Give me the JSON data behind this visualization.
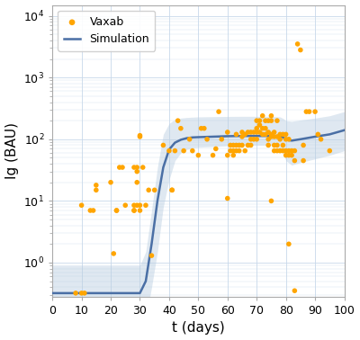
{
  "xlabel": "t (days)",
  "ylabel": "Ig (BAU)",
  "xlim": [
    0,
    100
  ],
  "ylim_log": [
    0.28,
    15000
  ],
  "ytick_locs": [
    1,
    10,
    100,
    1000,
    10000
  ],
  "ytick_labels": [
    "$10^0$",
    "$10^1$",
    "$10^2$",
    "$10^3$",
    "$10^4$"
  ],
  "xticks": [
    0,
    10,
    20,
    30,
    40,
    50,
    60,
    70,
    80,
    90,
    100
  ],
  "scatter_color": "#FFA500",
  "line_color": "#4a6fa5",
  "fill_color": "#b8cde0",
  "scatter_points": [
    [
      8,
      0.32
    ],
    [
      10,
      0.32
    ],
    [
      10,
      8.5
    ],
    [
      11,
      0.32
    ],
    [
      13,
      7.0
    ],
    [
      14,
      7.0
    ],
    [
      15,
      15.0
    ],
    [
      15,
      18.0
    ],
    [
      20,
      20.0
    ],
    [
      21,
      1.4
    ],
    [
      22,
      7.0
    ],
    [
      22,
      7.0
    ],
    [
      23,
      35.0
    ],
    [
      24,
      35.0
    ],
    [
      25,
      8.5
    ],
    [
      28,
      7.0
    ],
    [
      28,
      35.0
    ],
    [
      28,
      8.5
    ],
    [
      28,
      7.0
    ],
    [
      29,
      35.0
    ],
    [
      29,
      30.0
    ],
    [
      29,
      20.0
    ],
    [
      29,
      8.5
    ],
    [
      30,
      115.0
    ],
    [
      30,
      110.0
    ],
    [
      30,
      8.5
    ],
    [
      30,
      7.0
    ],
    [
      31,
      35.0
    ],
    [
      32,
      8.5
    ],
    [
      33,
      15.0
    ],
    [
      34,
      1.3
    ],
    [
      35,
      15.0
    ],
    [
      38,
      80.0
    ],
    [
      40,
      65.0
    ],
    [
      41,
      15.0
    ],
    [
      41,
      15.0
    ],
    [
      42,
      65.0
    ],
    [
      43,
      200.0
    ],
    [
      44,
      150.0
    ],
    [
      45,
      65.0
    ],
    [
      47,
      100.0
    ],
    [
      48,
      65.0
    ],
    [
      50,
      55.0
    ],
    [
      51,
      150.0
    ],
    [
      52,
      150.0
    ],
    [
      53,
      100.0
    ],
    [
      55,
      55.0
    ],
    [
      56,
      70.0
    ],
    [
      57,
      280.0
    ],
    [
      58,
      100.0
    ],
    [
      60,
      130.0
    ],
    [
      60,
      55.0
    ],
    [
      60,
      11.0
    ],
    [
      61,
      80.0
    ],
    [
      61,
      65.0
    ],
    [
      62,
      80.0
    ],
    [
      62,
      65.0
    ],
    [
      62,
      55.0
    ],
    [
      63,
      120.0
    ],
    [
      63,
      80.0
    ],
    [
      63,
      65.0
    ],
    [
      64,
      80.0
    ],
    [
      64,
      65.0
    ],
    [
      65,
      130.0
    ],
    [
      65,
      110.0
    ],
    [
      65,
      80.0
    ],
    [
      66,
      120.0
    ],
    [
      66,
      65.0
    ],
    [
      67,
      130.0
    ],
    [
      67,
      80.0
    ],
    [
      68,
      130.0
    ],
    [
      68,
      100.0
    ],
    [
      68,
      80.0
    ],
    [
      69,
      130.0
    ],
    [
      69,
      100.0
    ],
    [
      70,
      200.0
    ],
    [
      70,
      150.0
    ],
    [
      70,
      130.0
    ],
    [
      70,
      100.0
    ],
    [
      71,
      200.0
    ],
    [
      71,
      170.0
    ],
    [
      71,
      130.0
    ],
    [
      72,
      240.0
    ],
    [
      72,
      150.0
    ],
    [
      72,
      120.0
    ],
    [
      73,
      200.0
    ],
    [
      73,
      150.0
    ],
    [
      73,
      120.0
    ],
    [
      74,
      200.0
    ],
    [
      74,
      130.0
    ],
    [
      74,
      100.0
    ],
    [
      74,
      80.0
    ],
    [
      75,
      240.0
    ],
    [
      75,
      200.0
    ],
    [
      75,
      120.0
    ],
    [
      75,
      110.0
    ],
    [
      75,
      10.0
    ],
    [
      76,
      130.0
    ],
    [
      76,
      110.0
    ],
    [
      76,
      80.0
    ],
    [
      76,
      65.0
    ],
    [
      77,
      200.0
    ],
    [
      77,
      110.0
    ],
    [
      77,
      80.0
    ],
    [
      77,
      65.0
    ],
    [
      78,
      120.0
    ],
    [
      78,
      100.0
    ],
    [
      78,
      65.0
    ],
    [
      79,
      120.0
    ],
    [
      79,
      80.0
    ],
    [
      79,
      65.0
    ],
    [
      80,
      120.0
    ],
    [
      80,
      100.0
    ],
    [
      80,
      65.0
    ],
    [
      80,
      55.0
    ],
    [
      81,
      100.0
    ],
    [
      81,
      65.0
    ],
    [
      81,
      55.0
    ],
    [
      81,
      2.0
    ],
    [
      82,
      65.0
    ],
    [
      82,
      55.0
    ],
    [
      83,
      65.0
    ],
    [
      83,
      45.0
    ],
    [
      83,
      0.35
    ],
    [
      84,
      3500.0
    ],
    [
      85,
      2800.0
    ],
    [
      86,
      80.0
    ],
    [
      86,
      45.0
    ],
    [
      87,
      280.0
    ],
    [
      88,
      280.0
    ],
    [
      90,
      280.0
    ],
    [
      91,
      120.0
    ],
    [
      92,
      100.0
    ],
    [
      95,
      65.0
    ]
  ],
  "sim_x": [
    0,
    28,
    30,
    32,
    34,
    36,
    38,
    40,
    42,
    44,
    46,
    48,
    50,
    55,
    60,
    65,
    70,
    75,
    78,
    79,
    80,
    82,
    85,
    90,
    95,
    100
  ],
  "sim_y": [
    0.32,
    0.32,
    0.32,
    0.5,
    2.0,
    10.0,
    35.0,
    68.0,
    88.0,
    98.0,
    104.0,
    107.0,
    108.0,
    110.0,
    112.0,
    113.0,
    113.0,
    113.0,
    112.0,
    108.0,
    98.0,
    95.0,
    100.0,
    110.0,
    120.0,
    140.0
  ],
  "fill_lower": [
    0.08,
    0.08,
    0.08,
    0.12,
    0.4,
    1.5,
    8.0,
    22.0,
    45.0,
    60.0,
    68.0,
    72.0,
    74.0,
    76.0,
    78.0,
    80.0,
    80.0,
    80.0,
    72.0,
    60.0,
    45.0,
    38.0,
    42.0,
    48.0,
    55.0,
    65.0
  ],
  "fill_upper": [
    0.9,
    0.9,
    0.9,
    1.5,
    7.0,
    35.0,
    120.0,
    180.0,
    210.0,
    220.0,
    225.0,
    228.0,
    230.0,
    232.0,
    234.0,
    235.0,
    235.0,
    234.0,
    230.0,
    218.0,
    200.0,
    195.0,
    205.0,
    220.0,
    240.0,
    280.0
  ]
}
